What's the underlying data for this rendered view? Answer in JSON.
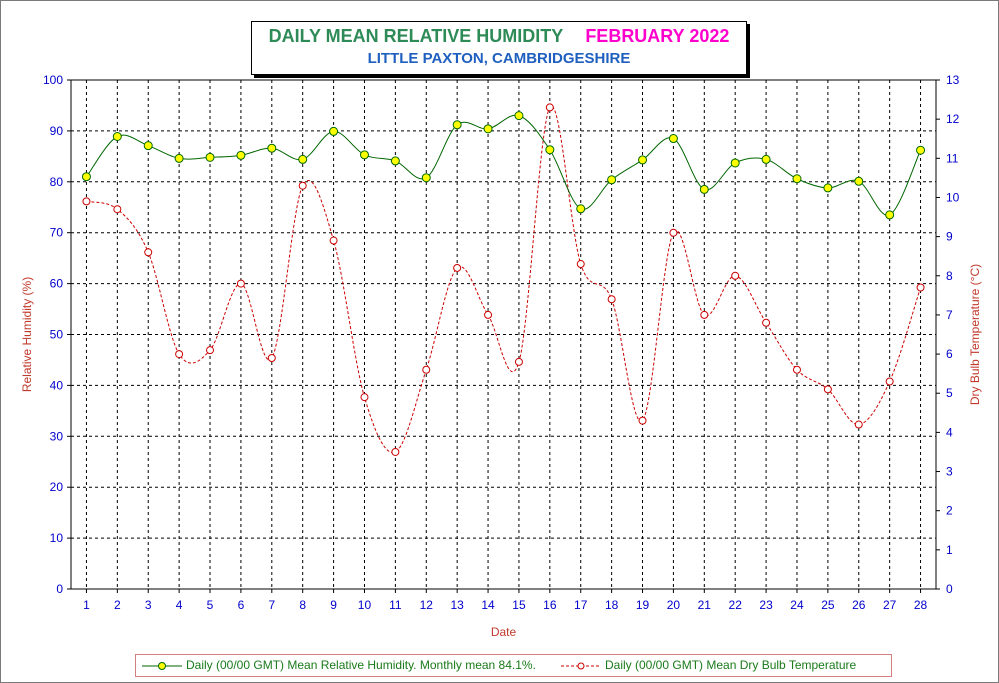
{
  "title": {
    "main": "DAILY MEAN RELATIVE HUMIDITY",
    "month": "FEBRUARY 2022",
    "subtitle": "LITTLE PAXTON, CAMBRIDGESHIRE"
  },
  "colors": {
    "humidity_line": "#006600",
    "humidity_marker": "#ffff00",
    "temperature_line": "#cc0000",
    "tick_text": "#0000cc",
    "axis_title": "#c0392b"
  },
  "chart_data": {
    "type": "line",
    "xlabel": "Date",
    "ylabel": "Relative Humidity (%)",
    "y2label": "Dry Bulb Temperature (°C)",
    "x": [
      1,
      2,
      3,
      4,
      5,
      6,
      7,
      8,
      9,
      10,
      11,
      12,
      13,
      14,
      15,
      16,
      17,
      18,
      19,
      20,
      21,
      22,
      23,
      24,
      25,
      26,
      27,
      28
    ],
    "ylim": [
      0,
      100
    ],
    "y_ticks": [
      0,
      10,
      20,
      30,
      40,
      50,
      60,
      70,
      80,
      90,
      100
    ],
    "y2lim": [
      0,
      13
    ],
    "y2_ticks": [
      0,
      1,
      2,
      3,
      4,
      5,
      6,
      7,
      8,
      9,
      10,
      11,
      12,
      13
    ],
    "grid": true,
    "legend_position": "bottom",
    "series": [
      {
        "name": "Daily (00/00 GMT) Mean Relative Humidity. Monthly mean 84.1%.",
        "axis": "left",
        "style": "solid",
        "values": [
          81.0,
          88.9,
          87.1,
          84.6,
          84.8,
          85.2,
          86.6,
          84.4,
          89.9,
          85.3,
          84.1,
          80.8,
          91.2,
          90.4,
          93.0,
          86.3,
          74.7,
          80.4,
          84.3,
          88.5,
          78.5,
          83.7,
          84.4,
          80.6,
          78.8,
          80.1,
          73.5,
          86.2
        ]
      },
      {
        "name": "Daily (00/00 GMT) Mean Dry Bulb Temperature",
        "axis": "right",
        "style": "dashed",
        "values": [
          9.9,
          9.7,
          8.6,
          6.0,
          6.1,
          7.8,
          5.9,
          10.3,
          8.9,
          4.9,
          3.5,
          5.6,
          8.2,
          7.0,
          5.8,
          12.3,
          8.3,
          7.4,
          4.3,
          9.1,
          7.0,
          8.0,
          6.8,
          5.6,
          5.1,
          4.2,
          5.3,
          7.7
        ]
      }
    ]
  }
}
